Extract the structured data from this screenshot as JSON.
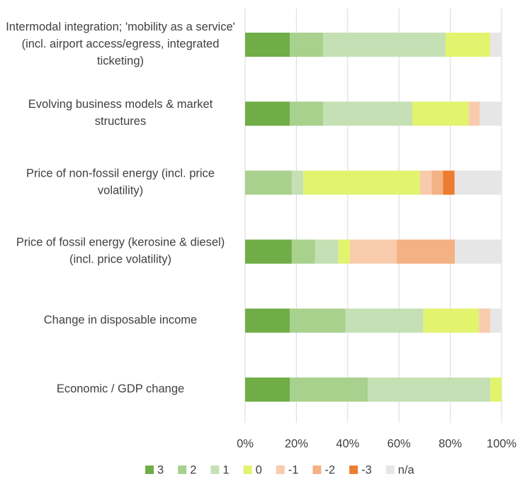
{
  "chart_data": {
    "type": "stacked_bar_horizontal",
    "categories": [
      "Intermodal integration; 'mobility as a service' (incl. airport access/egress, integrated ticketing)",
      "Evolving business models & market structures",
      "Price of non-fossil energy (incl. price volatility)",
      "Price of fossil energy (kerosine & diesel) (incl. price volatility)",
      "Change in disposable income",
      "Economic / GDP change"
    ],
    "series": [
      {
        "name": "3",
        "color": "#70ad47",
        "values": [
          17.4,
          17.4,
          0,
          18.2,
          17.4,
          17.4
        ]
      },
      {
        "name": "2",
        "color": "#a9d18e",
        "values": [
          13.0,
          13.0,
          18.2,
          9.1,
          21.7,
          30.4
        ]
      },
      {
        "name": "1",
        "color": "#c5e0b4",
        "values": [
          47.8,
          34.8,
          4.5,
          9.1,
          30.4,
          47.8
        ]
      },
      {
        "name": "0",
        "color": "#e2f36e",
        "values": [
          17.4,
          22.0,
          45.5,
          4.5,
          21.7,
          4.4
        ]
      },
      {
        "name": "-1",
        "color": "#f8cbad",
        "values": [
          0,
          4.3,
          4.5,
          18.2,
          4.4,
          0
        ]
      },
      {
        "name": "-2",
        "color": "#f4b183",
        "values": [
          0,
          0,
          4.5,
          22.7,
          0,
          0
        ]
      },
      {
        "name": "-3",
        "color": "#ed7d31",
        "values": [
          0,
          0,
          4.5,
          0,
          0,
          0
        ]
      },
      {
        "name": "n/a",
        "color": "#e7e6e6",
        "values": [
          4.4,
          8.5,
          18.3,
          18.2,
          4.4,
          0
        ]
      }
    ],
    "xlim": [
      0,
      100
    ],
    "xticks": [
      {
        "value": 0,
        "label": "0%"
      },
      {
        "value": 20,
        "label": "20%"
      },
      {
        "value": 40,
        "label": "40%"
      },
      {
        "value": 60,
        "label": "60%"
      },
      {
        "value": 80,
        "label": "80%"
      },
      {
        "value": 100,
        "label": "100%"
      }
    ],
    "grid": true,
    "legend": "bottom"
  }
}
